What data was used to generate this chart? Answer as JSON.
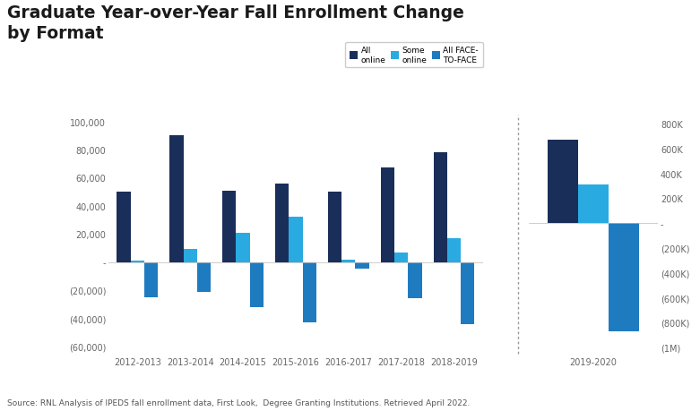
{
  "title": "Graduate Year-over-Year Fall Enrollment Change\nby Format",
  "source": "Source: RNL Analysis of IPEDS fall enrollment data, First Look,  Degree Granting Institutions. Retrieved April 2022.",
  "years_left": [
    "2012-2013",
    "2013-2014",
    "2014-2015",
    "2015-2016",
    "2016-2017",
    "2017-2018",
    "2018-2019"
  ],
  "years_right": [
    "2019-2020"
  ],
  "all_online_left": [
    50000,
    90000,
    51000,
    56000,
    50000,
    67000,
    78000
  ],
  "some_online_left": [
    1000,
    9000,
    21000,
    32000,
    1500,
    7000,
    17000
  ],
  "all_face_left": [
    -25000,
    -21000,
    -32000,
    -43000,
    -5000,
    -26000,
    -44000
  ],
  "all_online_right": [
    670000
  ],
  "some_online_right": [
    310000
  ],
  "all_face_right": [
    -870000
  ],
  "color_all_online": "#1a2e5a",
  "color_some_online": "#29abe2",
  "color_all_face": "#1f7bbf",
  "background_color": "#ffffff",
  "ylim_left": [
    -65000,
    105000
  ],
  "ylim_right": [
    -1050000,
    875000
  ],
  "yticks_left": [
    -60000,
    -40000,
    -20000,
    0,
    20000,
    40000,
    60000,
    80000,
    100000
  ],
  "yticks_right": [
    -1000000,
    -800000,
    -600000,
    -400000,
    -200000,
    0,
    200000,
    400000,
    600000,
    800000
  ],
  "legend_labels": [
    "All\nonline",
    "Some\nonline",
    "All FACE-\nTO-FACE"
  ]
}
